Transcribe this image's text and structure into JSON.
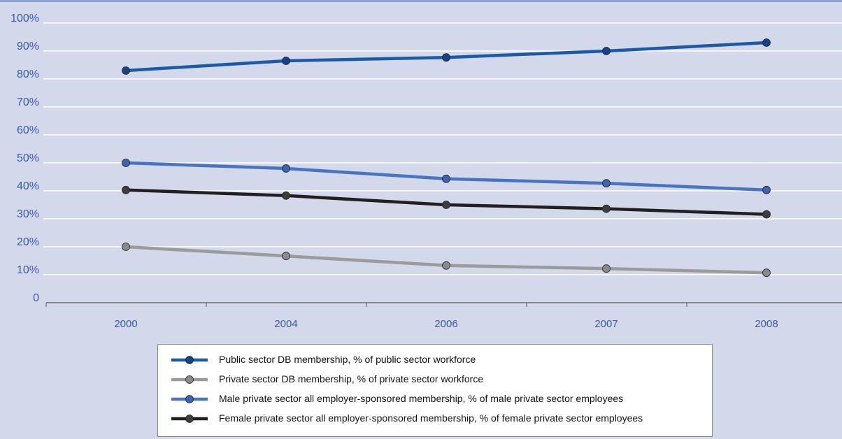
{
  "chart_data": {
    "type": "line",
    "categories": [
      "2000",
      "2004",
      "2006",
      "2007",
      "2008"
    ],
    "y_tick_labels": [
      "0",
      "10%",
      "20%",
      "30%",
      "40%",
      "50%",
      "60%",
      "70%",
      "80%",
      "90%",
      "100%"
    ],
    "ylim": [
      0,
      100
    ],
    "grid": true,
    "legend_position": "bottom",
    "series": [
      {
        "name": "Public sector DB membership, % of public sector workforce",
        "values": [
          83,
          86.5,
          87.7,
          90,
          93
        ],
        "color": "#1d5aa5",
        "marker": "#14438a"
      },
      {
        "name": "Private sector DB membership, % of private sector workforce",
        "values": [
          20,
          16.7,
          13.3,
          12.2,
          10.7
        ],
        "color": "#9b9b9b",
        "marker": "#8a8a8a"
      },
      {
        "name": "Male private sector all employer-sponsored membership, % of male private sector employees",
        "values": [
          50,
          48,
          44.3,
          42.7,
          40.3
        ],
        "color": "#4a73c0",
        "marker": "#3c64b0"
      },
      {
        "name": "Female private sector all employer-sponsored membership, % of female private sector employees",
        "values": [
          40.3,
          38.3,
          35,
          33.6,
          31.6
        ],
        "color": "#231f20",
        "marker": "#3d3d3d"
      }
    ]
  },
  "colors": {
    "background": "#d3d9eb",
    "gridline": "#ffffff",
    "axis_text": "#3b5aa0"
  }
}
